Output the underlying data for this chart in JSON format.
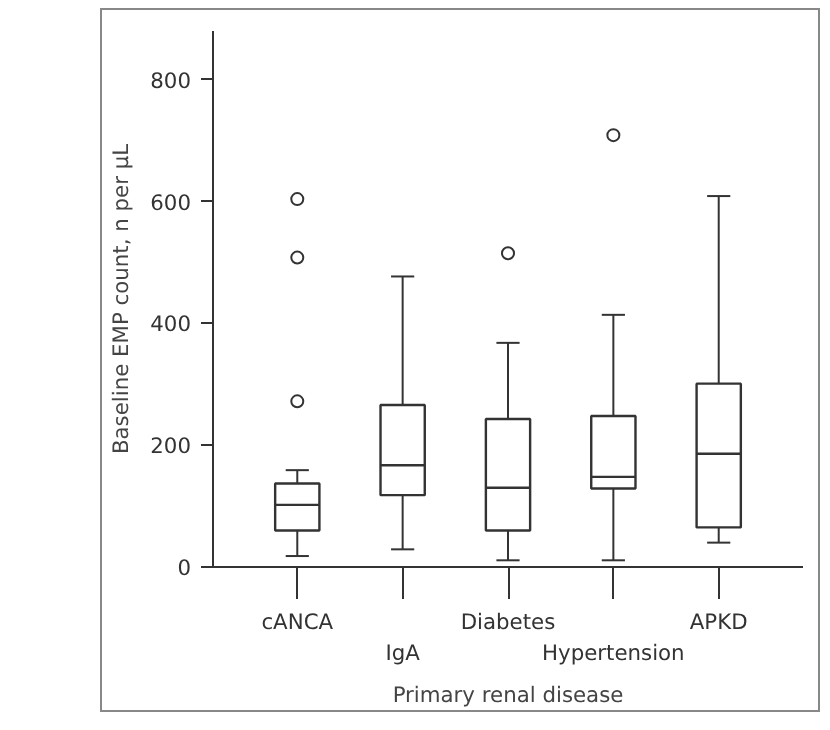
{
  "chart_data": {
    "type": "box",
    "xlabel": "Primary renal disease",
    "ylabel": "Baseline EMP count, n per µL",
    "categories": [
      "cANCA",
      "IgA",
      "Diabetes",
      "Hypertension",
      "APKD"
    ],
    "boxes": [
      {
        "low": 18,
        "q1": 60,
        "median": 102,
        "q3": 137,
        "high": 159,
        "outliers": [
          272,
          508,
          604
        ]
      },
      {
        "low": 29,
        "q1": 118,
        "median": 167,
        "q3": 266,
        "high": 477
      },
      {
        "low": 11,
        "q1": 60,
        "median": 130,
        "q3": 243,
        "high": 368,
        "outliers": [
          515
        ]
      },
      {
        "low": 11,
        "q1": 129,
        "median": 148,
        "q3": 248,
        "high": 414,
        "outliers": [
          709
        ]
      },
      {
        "low": 40,
        "q1": 65,
        "median": 186,
        "q3": 301,
        "high": 609
      }
    ],
    "ylim": [
      0,
      880
    ],
    "yticks": [
      0,
      200,
      400,
      600,
      800
    ],
    "grid": false,
    "color": "#333333"
  }
}
